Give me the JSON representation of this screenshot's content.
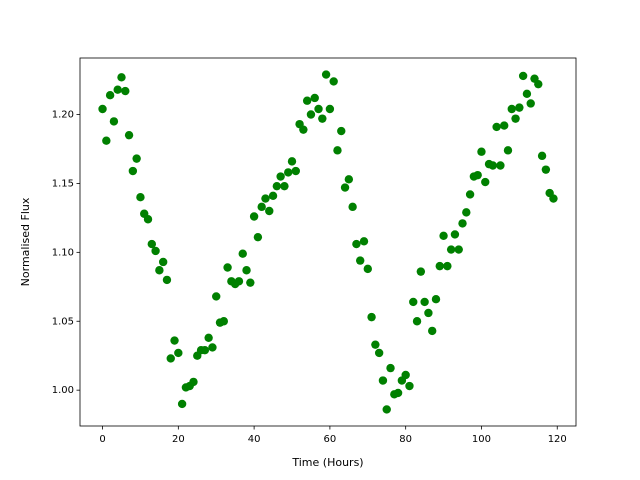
{
  "chart_data": {
    "type": "scatter",
    "x_label": "Time (Hours)",
    "y_label": "Normalised Flux",
    "color": "#008000",
    "x": [
      0,
      1,
      2,
      3,
      4,
      5,
      6,
      7,
      8,
      9,
      10,
      11,
      12,
      13,
      14,
      15,
      16,
      17,
      18,
      19,
      20,
      21,
      22,
      23,
      24,
      25,
      26,
      27,
      28,
      29,
      30,
      31,
      32,
      33,
      34,
      35,
      36,
      37,
      38,
      39,
      40,
      41,
      42,
      43,
      44,
      45,
      46,
      47,
      48,
      49,
      50,
      51,
      52,
      53,
      54,
      55,
      56,
      57,
      58,
      59,
      60,
      61,
      62,
      63,
      64,
      65,
      66,
      67,
      68,
      69,
      70,
      71,
      72,
      73,
      74,
      75,
      76,
      77,
      78,
      79,
      80,
      81,
      82,
      83,
      84,
      85,
      86,
      87,
      88,
      89,
      90,
      91,
      92,
      93,
      94,
      95,
      96,
      97,
      98,
      99,
      100,
      101,
      102,
      103,
      104,
      105,
      106,
      107,
      108,
      109,
      110,
      111,
      112,
      113,
      114,
      115,
      116,
      117,
      118,
      119
    ],
    "values": [
      1.204,
      1.181,
      1.214,
      1.195,
      1.218,
      1.227,
      1.217,
      1.185,
      1.159,
      1.168,
      1.14,
      1.128,
      1.124,
      1.106,
      1.101,
      1.087,
      1.093,
      1.08,
      1.023,
      1.036,
      1.027,
      0.99,
      1.002,
      1.003,
      1.006,
      1.025,
      1.029,
      1.029,
      1.038,
      1.031,
      1.068,
      1.049,
      1.05,
      1.089,
      1.079,
      1.077,
      1.079,
      1.099,
      1.087,
      1.078,
      1.126,
      1.111,
      1.133,
      1.139,
      1.13,
      1.141,
      1.148,
      1.155,
      1.148,
      1.158,
      1.166,
      1.159,
      1.193,
      1.189,
      1.21,
      1.2,
      1.212,
      1.204,
      1.197,
      1.229,
      1.204,
      1.224,
      1.174,
      1.188,
      1.147,
      1.153,
      1.133,
      1.106,
      1.094,
      1.108,
      1.088,
      1.053,
      1.033,
      1.027,
      1.007,
      0.986,
      1.016,
      0.997,
      0.998,
      1.007,
      1.011,
      1.003,
      1.064,
      1.05,
      1.086,
      1.064,
      1.056,
      1.043,
      1.066,
      1.09,
      1.112,
      1.09,
      1.102,
      1.113,
      1.102,
      1.121,
      1.129,
      1.142,
      1.155,
      1.156,
      1.173,
      1.151,
      1.164,
      1.163,
      1.191,
      1.163,
      1.192,
      1.174,
      1.204,
      1.197,
      1.205,
      1.228,
      1.215,
      1.208,
      1.226,
      1.222,
      1.17,
      1.16,
      1.143,
      1.139
    ],
    "xlim": [
      -5.95,
      124.95
    ],
    "xticks": [
      0,
      20,
      40,
      60,
      80,
      100,
      120
    ],
    "ylim": [
      0.974,
      1.241
    ],
    "yticks": [
      {
        "value": 1.0,
        "label": "1.00"
      },
      {
        "value": 1.05,
        "label": "1.05"
      },
      {
        "value": 1.1,
        "label": "1.10"
      },
      {
        "value": 1.15,
        "label": "1.15"
      },
      {
        "value": 1.2,
        "label": "1.20"
      }
    ],
    "grid": false
  }
}
